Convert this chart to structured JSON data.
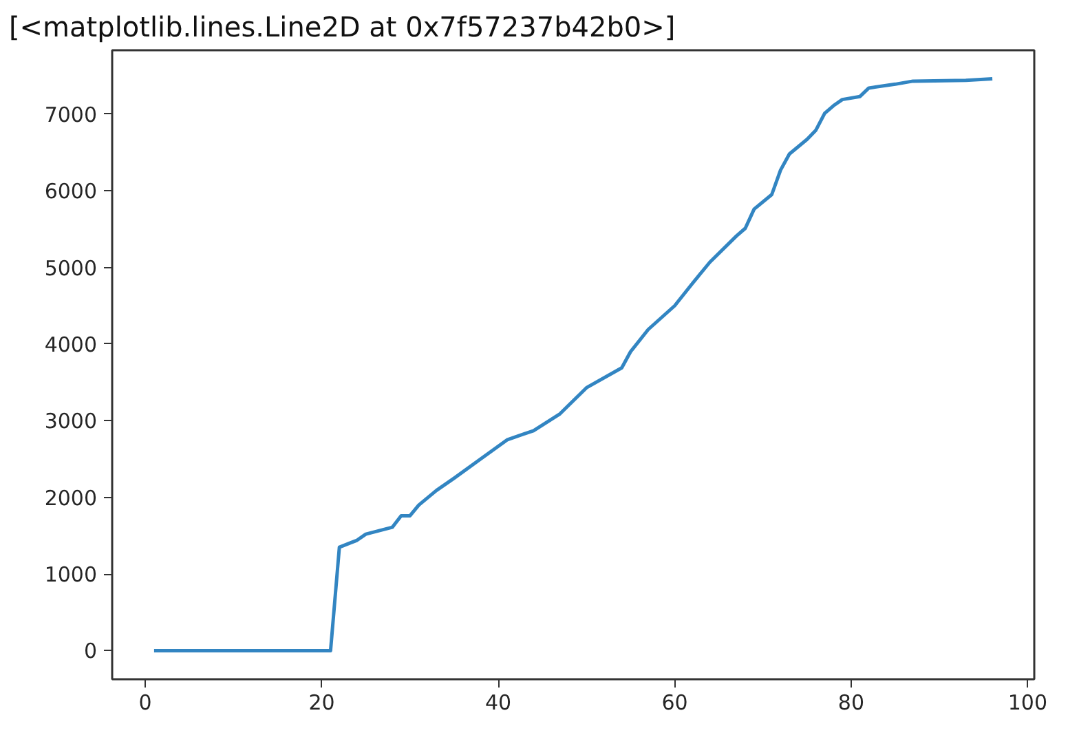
{
  "chart_data": {
    "type": "line",
    "annotations": [
      "[<matplotlib.lines.Line2D at 0x7f57237b42b0>]"
    ],
    "x": [
      1,
      21,
      22,
      24,
      25,
      28,
      29,
      30,
      31,
      33,
      35,
      38,
      41,
      44,
      47,
      50,
      54,
      55,
      57,
      60,
      62,
      64,
      67,
      68,
      69,
      71,
      72,
      73,
      75,
      76,
      77,
      78,
      79,
      81,
      82,
      85,
      87,
      93,
      96
    ],
    "series": [
      {
        "color": "#3285c2",
        "values": [
          0,
          0,
          1350,
          1440,
          1520,
          1610,
          1760,
          1760,
          1900,
          2090,
          2250,
          2500,
          2750,
          2870,
          3090,
          3430,
          3690,
          3900,
          4190,
          4500,
          4790,
          5070,
          5410,
          5510,
          5760,
          5950,
          6270,
          6480,
          6670,
          6790,
          7010,
          7110,
          7190,
          7230,
          7340,
          7390,
          7430,
          7440,
          7460
        ]
      }
    ],
    "xlim": [
      -3.75,
      100.75
    ],
    "ylim": [
      -373,
      7833
    ],
    "xticks": [
      0,
      20,
      40,
      60,
      80,
      100
    ],
    "yticks": [
      0,
      1000,
      2000,
      3000,
      4000,
      5000,
      6000,
      7000
    ],
    "grid": false,
    "marker": "none",
    "line_style": "solid"
  }
}
